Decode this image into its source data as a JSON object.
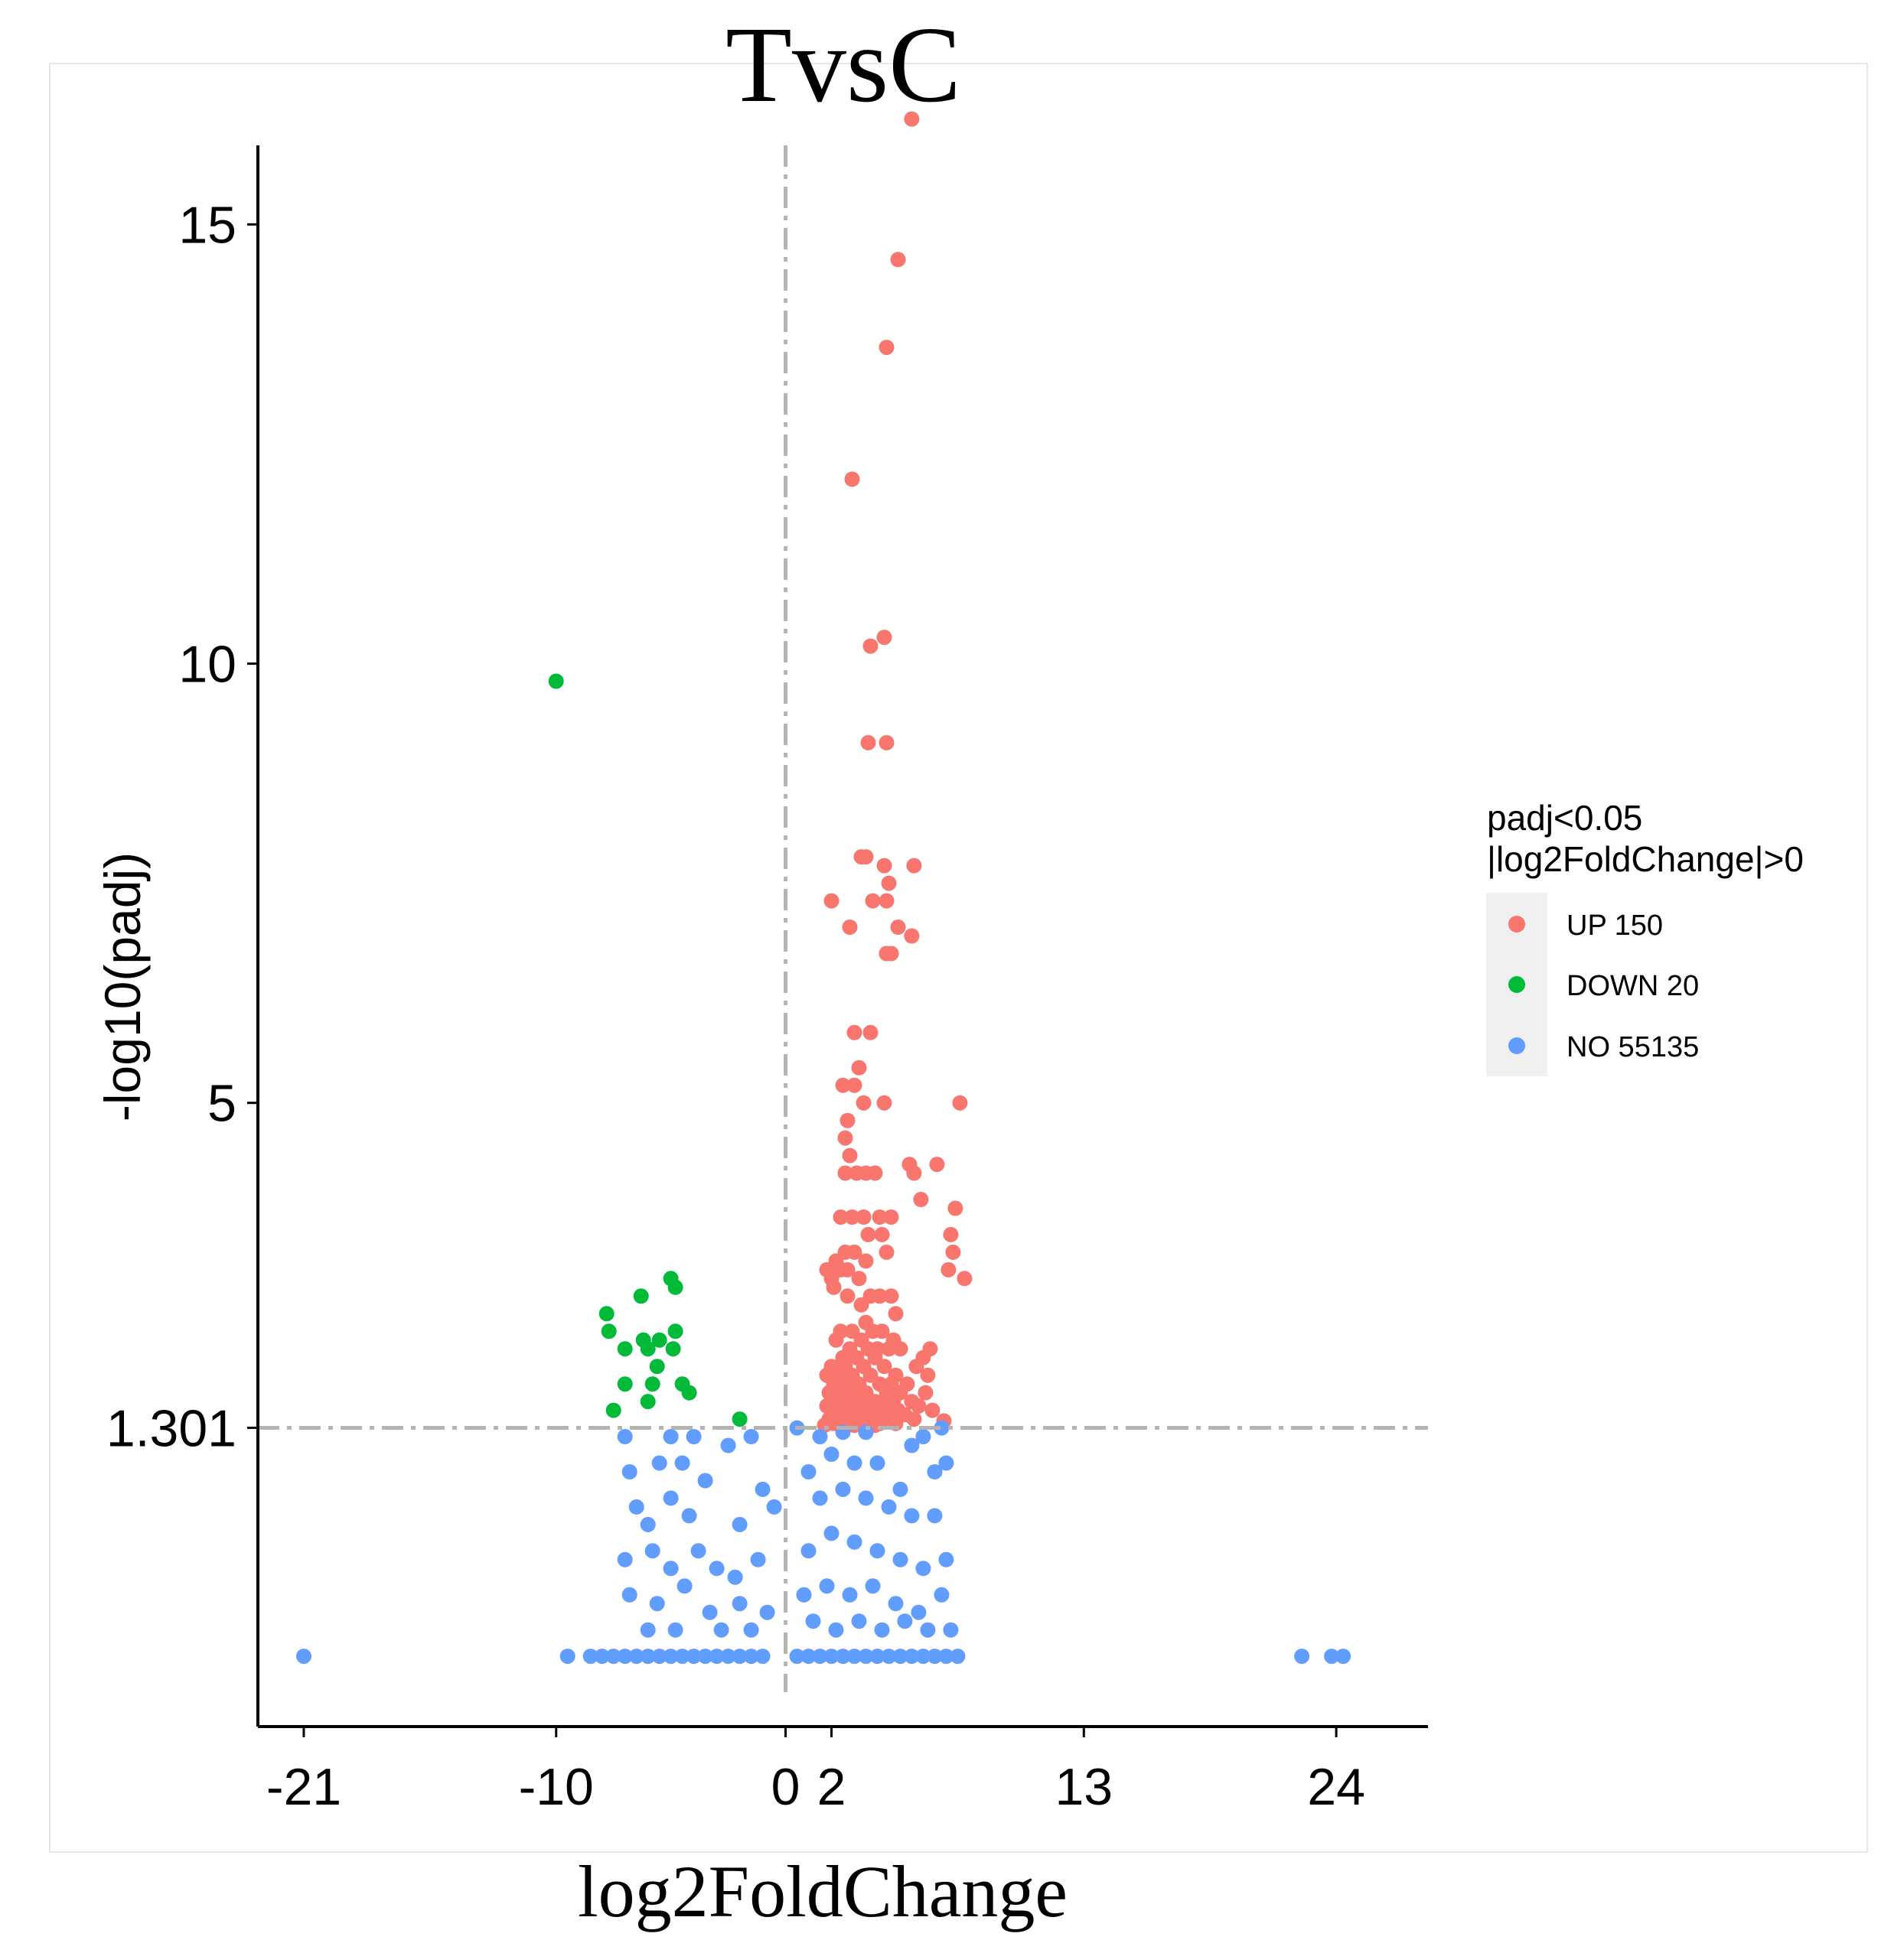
{
  "chart_data": {
    "type": "scatter",
    "title": "TvsC",
    "xlabel": "log2FoldChange",
    "ylabel": "-log10(padj)",
    "xlim": [
      -23,
      28
    ],
    "ylim": [
      -2.1,
      15.9
    ],
    "x_ticks": [
      -21,
      -10,
      0,
      2,
      13,
      24
    ],
    "x_tick_labels": [
      "-21",
      "-10",
      "0",
      "2",
      "13",
      "24"
    ],
    "y_ticks": [
      1.301,
      5,
      10,
      15
    ],
    "y_tick_labels": [
      "1.301",
      "5",
      "10",
      "15"
    ],
    "vline": 0,
    "hline": 1.301,
    "grid": false,
    "legend_position": "right",
    "legend": {
      "title_lines": [
        "padj<0.05",
        "|log2FoldChange|>0"
      ],
      "entries": [
        {
          "key": "up",
          "label": "UP 150",
          "color": "#F8766D"
        },
        {
          "key": "down",
          "label": "DOWN 20",
          "color": "#00BA38"
        },
        {
          "key": "no",
          "label": "NO 55135",
          "color": "#619CFF"
        }
      ]
    },
    "series": [
      {
        "name": "UP 150",
        "color": "#F8766D",
        "points": [
          [
            5.5,
            16.2
          ],
          [
            4.9,
            14.6
          ],
          [
            4.4,
            13.6
          ],
          [
            2.9,
            12.1
          ],
          [
            4.3,
            10.3
          ],
          [
            3.7,
            10.2
          ],
          [
            3.6,
            9.1
          ],
          [
            4.4,
            9.1
          ],
          [
            3.3,
            7.8
          ],
          [
            3.5,
            7.8
          ],
          [
            4.3,
            7.7
          ],
          [
            5.6,
            7.7
          ],
          [
            4.5,
            7.5
          ],
          [
            2.0,
            7.3
          ],
          [
            3.8,
            7.3
          ],
          [
            4.4,
            7.3
          ],
          [
            2.8,
            7.0
          ],
          [
            4.9,
            7.0
          ],
          [
            5.5,
            6.9
          ],
          [
            4.4,
            6.7
          ],
          [
            4.6,
            6.7
          ],
          [
            3.0,
            5.8
          ],
          [
            3.7,
            5.8
          ],
          [
            3.2,
            5.4
          ],
          [
            2.5,
            5.2
          ],
          [
            3.0,
            5.2
          ],
          [
            3.4,
            5.0
          ],
          [
            4.3,
            5.0
          ],
          [
            7.6,
            5.0
          ],
          [
            2.7,
            4.8
          ],
          [
            2.6,
            4.6
          ],
          [
            2.8,
            4.4
          ],
          [
            5.4,
            4.3
          ],
          [
            6.6,
            4.3
          ],
          [
            2.6,
            4.2
          ],
          [
            3.1,
            4.2
          ],
          [
            3.5,
            4.2
          ],
          [
            3.9,
            4.2
          ],
          [
            5.6,
            4.2
          ],
          [
            5.9,
            3.9
          ],
          [
            7.4,
            3.8
          ],
          [
            2.4,
            3.7
          ],
          [
            2.9,
            3.7
          ],
          [
            3.4,
            3.7
          ],
          [
            4.1,
            3.7
          ],
          [
            4.6,
            3.7
          ],
          [
            3.6,
            3.5
          ],
          [
            4.2,
            3.5
          ],
          [
            7.2,
            3.5
          ],
          [
            7.3,
            3.3
          ],
          [
            2.2,
            3.2
          ],
          [
            2.6,
            3.3
          ],
          [
            3.0,
            3.3
          ],
          [
            3.5,
            3.2
          ],
          [
            4.4,
            3.3
          ],
          [
            1.8,
            3.1
          ],
          [
            2.4,
            3.1
          ],
          [
            2.7,
            3.1
          ],
          [
            7.1,
            3.1
          ],
          [
            2.0,
            3.0
          ],
          [
            3.2,
            3.0
          ],
          [
            7.8,
            3.0
          ],
          [
            2.1,
            2.9
          ],
          [
            2.7,
            2.8
          ],
          [
            3.7,
            2.8
          ],
          [
            4.1,
            2.8
          ],
          [
            4.6,
            2.8
          ],
          [
            3.3,
            2.7
          ],
          [
            4.8,
            2.6
          ],
          [
            3.5,
            2.5
          ],
          [
            2.4,
            2.4
          ],
          [
            2.9,
            2.4
          ],
          [
            3.8,
            2.4
          ],
          [
            4.2,
            2.4
          ],
          [
            2.2,
            2.3
          ],
          [
            3.3,
            2.3
          ],
          [
            4.7,
            2.3
          ],
          [
            2.8,
            2.2
          ],
          [
            3.6,
            2.2
          ],
          [
            4.0,
            2.2
          ],
          [
            4.5,
            2.2
          ],
          [
            5.0,
            2.2
          ],
          [
            2.5,
            2.1
          ],
          [
            3.1,
            2.1
          ],
          [
            3.9,
            2.1
          ],
          [
            6.0,
            2.1
          ],
          [
            6.3,
            2.2
          ],
          [
            2.0,
            2.0
          ],
          [
            2.6,
            2.0
          ],
          [
            3.4,
            2.0
          ],
          [
            4.3,
            2.0
          ],
          [
            5.7,
            2.0
          ],
          [
            1.8,
            1.9
          ],
          [
            2.3,
            1.9
          ],
          [
            2.9,
            1.9
          ],
          [
            3.7,
            1.9
          ],
          [
            4.8,
            1.9
          ],
          [
            6.2,
            1.9
          ],
          [
            2.1,
            1.8
          ],
          [
            2.7,
            1.8
          ],
          [
            3.2,
            1.8
          ],
          [
            4.1,
            1.8
          ],
          [
            4.6,
            1.8
          ],
          [
            5.3,
            1.8
          ],
          [
            1.9,
            1.7
          ],
          [
            2.4,
            1.7
          ],
          [
            3.0,
            1.7
          ],
          [
            3.5,
            1.7
          ],
          [
            4.4,
            1.7
          ],
          [
            5.0,
            1.7
          ],
          [
            6.1,
            1.7
          ],
          [
            2.2,
            1.6
          ],
          [
            2.8,
            1.6
          ],
          [
            3.3,
            1.6
          ],
          [
            3.9,
            1.6
          ],
          [
            4.7,
            1.6
          ],
          [
            5.5,
            1.6
          ],
          [
            1.8,
            1.55
          ],
          [
            2.5,
            1.55
          ],
          [
            3.1,
            1.55
          ],
          [
            3.6,
            1.55
          ],
          [
            4.2,
            1.55
          ],
          [
            5.8,
            1.55
          ],
          [
            2.0,
            1.5
          ],
          [
            2.7,
            1.5
          ],
          [
            3.4,
            1.5
          ],
          [
            4.0,
            1.5
          ],
          [
            4.9,
            1.5
          ],
          [
            6.4,
            1.5
          ],
          [
            2.3,
            1.45
          ],
          [
            2.9,
            1.45
          ],
          [
            3.7,
            1.45
          ],
          [
            4.5,
            1.45
          ],
          [
            5.2,
            1.45
          ],
          [
            1.9,
            1.4
          ],
          [
            2.6,
            1.4
          ],
          [
            3.2,
            1.4
          ],
          [
            3.8,
            1.4
          ],
          [
            4.3,
            1.4
          ],
          [
            5.6,
            1.4
          ],
          [
            6.9,
            1.38
          ],
          [
            2.1,
            1.35
          ],
          [
            2.8,
            1.35
          ],
          [
            3.5,
            1.35
          ],
          [
            4.1,
            1.35
          ],
          [
            4.8,
            1.35
          ],
          [
            1.7,
            1.33
          ],
          [
            2.4,
            1.33
          ],
          [
            3.0,
            1.33
          ],
          [
            3.9,
            1.33
          ]
        ]
      },
      {
        "name": "DOWN 20",
        "color": "#00BA38",
        "points": [
          [
            -10.0,
            9.8
          ],
          [
            -5.0,
            3.0
          ],
          [
            -4.8,
            2.9
          ],
          [
            -6.3,
            2.8
          ],
          [
            -7.8,
            2.6
          ],
          [
            -4.8,
            2.4
          ],
          [
            -7.7,
            2.4
          ],
          [
            -6.2,
            2.3
          ],
          [
            -5.5,
            2.3
          ],
          [
            -6.0,
            2.2
          ],
          [
            -4.9,
            2.2
          ],
          [
            -7.0,
            2.2
          ],
          [
            -5.6,
            2.0
          ],
          [
            -7.0,
            1.8
          ],
          [
            -5.8,
            1.8
          ],
          [
            -4.5,
            1.8
          ],
          [
            -4.2,
            1.7
          ],
          [
            -6.0,
            1.6
          ],
          [
            -7.5,
            1.5
          ],
          [
            -2.0,
            1.4
          ]
        ]
      },
      {
        "name": "NO 55135",
        "color": "#619CFF",
        "points": [
          [
            -21.0,
            -1.3
          ],
          [
            -9.5,
            -1.3
          ],
          [
            -8.5,
            -1.3
          ],
          [
            -8.0,
            -1.3
          ],
          [
            -7.5,
            -1.3
          ],
          [
            -7.0,
            -1.3
          ],
          [
            -6.5,
            -1.3
          ],
          [
            -6.0,
            -1.3
          ],
          [
            -5.5,
            -1.3
          ],
          [
            -5.0,
            -1.3
          ],
          [
            -4.5,
            -1.3
          ],
          [
            -4.0,
            -1.3
          ],
          [
            -3.5,
            -1.3
          ],
          [
            -3.0,
            -1.3
          ],
          [
            -2.5,
            -1.3
          ],
          [
            -2.0,
            -1.3
          ],
          [
            -1.5,
            -1.3
          ],
          [
            -1.0,
            -1.3
          ],
          [
            0.5,
            -1.3
          ],
          [
            1.0,
            -1.3
          ],
          [
            1.5,
            -1.3
          ],
          [
            2.0,
            -1.3
          ],
          [
            2.5,
            -1.3
          ],
          [
            3.0,
            -1.3
          ],
          [
            3.5,
            -1.3
          ],
          [
            4.0,
            -1.3
          ],
          [
            4.5,
            -1.3
          ],
          [
            5.0,
            -1.3
          ],
          [
            5.5,
            -1.3
          ],
          [
            6.0,
            -1.3
          ],
          [
            6.5,
            -1.3
          ],
          [
            7.0,
            -1.3
          ],
          [
            7.5,
            -1.3
          ],
          [
            22.5,
            -1.3
          ],
          [
            23.8,
            -1.3
          ],
          [
            24.3,
            -1.3
          ],
          [
            -7.0,
            1.2
          ],
          [
            -5.0,
            1.2
          ],
          [
            -4.0,
            1.2
          ],
          [
            -2.5,
            1.1
          ],
          [
            -1.5,
            1.2
          ],
          [
            0.5,
            1.3
          ],
          [
            1.5,
            1.2
          ],
          [
            2.5,
            1.25
          ],
          [
            3.5,
            1.25
          ],
          [
            5.5,
            1.1
          ],
          [
            6.0,
            1.2
          ],
          [
            6.8,
            1.3
          ],
          [
            -6.8,
            0.8
          ],
          [
            -5.5,
            0.9
          ],
          [
            -4.5,
            0.9
          ],
          [
            -3.5,
            0.7
          ],
          [
            -1.0,
            0.6
          ],
          [
            1.0,
            0.8
          ],
          [
            2.0,
            1.0
          ],
          [
            3.0,
            0.9
          ],
          [
            4.0,
            0.9
          ],
          [
            5.0,
            0.6
          ],
          [
            6.5,
            0.8
          ],
          [
            7.0,
            0.9
          ],
          [
            -6.5,
            0.4
          ],
          [
            -6.0,
            0.2
          ],
          [
            -5.0,
            0.5
          ],
          [
            -4.2,
            0.3
          ],
          [
            -2.0,
            0.2
          ],
          [
            -0.5,
            0.4
          ],
          [
            1.5,
            0.5
          ],
          [
            2.5,
            0.6
          ],
          [
            3.5,
            0.5
          ],
          [
            4.5,
            0.4
          ],
          [
            5.5,
            0.3
          ],
          [
            6.5,
            0.3
          ],
          [
            -7.0,
            -0.2
          ],
          [
            -5.8,
            -0.1
          ],
          [
            -5.0,
            -0.3
          ],
          [
            -3.8,
            -0.1
          ],
          [
            -3.0,
            -0.3
          ],
          [
            -2.2,
            -0.4
          ],
          [
            -1.2,
            -0.2
          ],
          [
            1.0,
            -0.1
          ],
          [
            2.0,
            0.1
          ],
          [
            3.0,
            0.0
          ],
          [
            4.0,
            -0.1
          ],
          [
            5.0,
            -0.2
          ],
          [
            6.0,
            -0.3
          ],
          [
            7.0,
            -0.2
          ],
          [
            -6.8,
            -0.6
          ],
          [
            -5.6,
            -0.7
          ],
          [
            -4.4,
            -0.5
          ],
          [
            -3.3,
            -0.8
          ],
          [
            -2.0,
            -0.7
          ],
          [
            -0.8,
            -0.8
          ],
          [
            0.8,
            -0.6
          ],
          [
            1.8,
            -0.5
          ],
          [
            2.8,
            -0.6
          ],
          [
            3.8,
            -0.5
          ],
          [
            4.8,
            -0.7
          ],
          [
            5.8,
            -0.8
          ],
          [
            6.8,
            -0.6
          ],
          [
            -6.0,
            -1.0
          ],
          [
            -4.8,
            -1.0
          ],
          [
            -2.8,
            -1.0
          ],
          [
            -1.5,
            -1.0
          ],
          [
            1.2,
            -0.9
          ],
          [
            2.2,
            -1.0
          ],
          [
            3.2,
            -0.9
          ],
          [
            4.2,
            -1.0
          ],
          [
            5.2,
            -0.9
          ],
          [
            6.2,
            -1.0
          ],
          [
            7.2,
            -1.0
          ]
        ]
      }
    ]
  }
}
